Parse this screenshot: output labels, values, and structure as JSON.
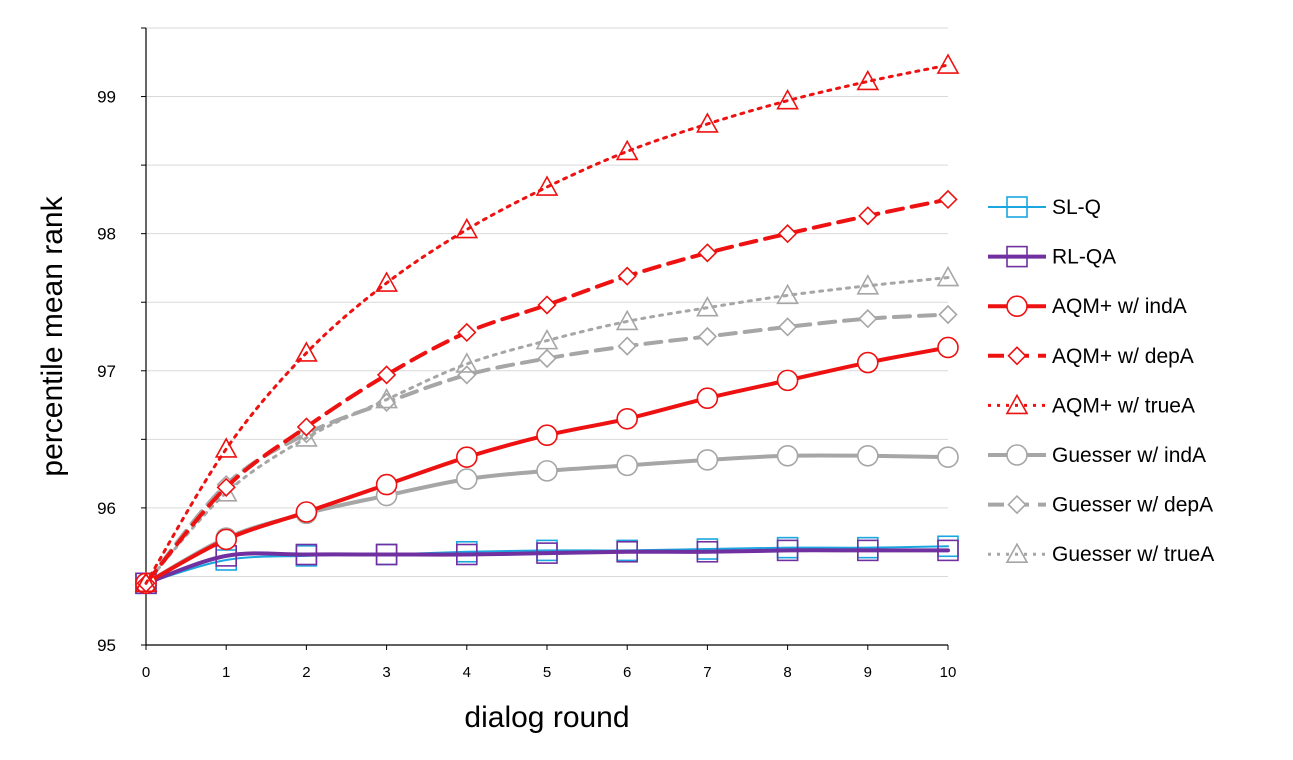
{
  "chart_data": {
    "type": "line",
    "xlabel": "dialog round",
    "ylabel": "percentile mean rank",
    "x": [
      0,
      1,
      2,
      3,
      4,
      5,
      6,
      7,
      8,
      9,
      10
    ],
    "xlim": [
      0,
      10
    ],
    "ylim": [
      95,
      99.5
    ],
    "yticks": [
      95,
      96,
      97,
      98,
      99
    ],
    "grid": "horizontal",
    "legend_position": "right",
    "series": [
      {
        "name": "SL-Q",
        "color": "#1aa7e0",
        "dash": "solid",
        "marker": "square",
        "width": 2,
        "values": [
          95.45,
          95.62,
          95.65,
          95.66,
          95.68,
          95.69,
          95.69,
          95.7,
          95.71,
          95.71,
          95.72
        ]
      },
      {
        "name": "RL-QA",
        "color": "#7030a0",
        "dash": "solid",
        "marker": "square",
        "width": 4,
        "values": [
          95.45,
          95.65,
          95.66,
          95.66,
          95.66,
          95.67,
          95.68,
          95.68,
          95.69,
          95.69,
          95.69
        ]
      },
      {
        "name": "AQM+ w/ indA",
        "color": "#ee1111",
        "dash": "solid",
        "marker": "circle",
        "width": 4,
        "values": [
          95.45,
          95.77,
          95.97,
          96.17,
          96.37,
          96.53,
          96.65,
          96.8,
          96.93,
          97.06,
          97.17
        ]
      },
      {
        "name": "AQM+ w/ depA",
        "color": "#ee1111",
        "dash": "dash",
        "marker": "diamond",
        "width": 4,
        "values": [
          95.45,
          96.15,
          96.59,
          96.97,
          97.28,
          97.48,
          97.69,
          97.86,
          98.0,
          98.13,
          98.25
        ]
      },
      {
        "name": "AQM+ w/ trueA",
        "color": "#ee1111",
        "dash": "dot",
        "marker": "triangle",
        "width": 3,
        "values": [
          95.45,
          96.43,
          97.13,
          97.64,
          98.03,
          98.34,
          98.6,
          98.8,
          98.97,
          99.11,
          99.23
        ]
      },
      {
        "name": "Guesser w/ indA",
        "color": "#a6a6a6",
        "dash": "solid",
        "marker": "circle",
        "width": 4,
        "values": [
          95.45,
          95.78,
          95.96,
          96.09,
          96.21,
          96.27,
          96.31,
          96.35,
          96.38,
          96.38,
          96.37
        ]
      },
      {
        "name": "Guesser w/ depA",
        "color": "#a6a6a6",
        "dash": "dash",
        "marker": "diamond",
        "width": 4,
        "values": [
          95.45,
          96.17,
          96.54,
          96.77,
          96.97,
          97.09,
          97.18,
          97.25,
          97.32,
          97.38,
          97.41
        ]
      },
      {
        "name": "Guesser w/ trueA",
        "color": "#a6a6a6",
        "dash": "dot",
        "marker": "triangle",
        "width": 3,
        "values": [
          95.45,
          96.11,
          96.51,
          96.79,
          97.05,
          97.22,
          97.36,
          97.46,
          97.55,
          97.62,
          97.68
        ]
      }
    ]
  }
}
